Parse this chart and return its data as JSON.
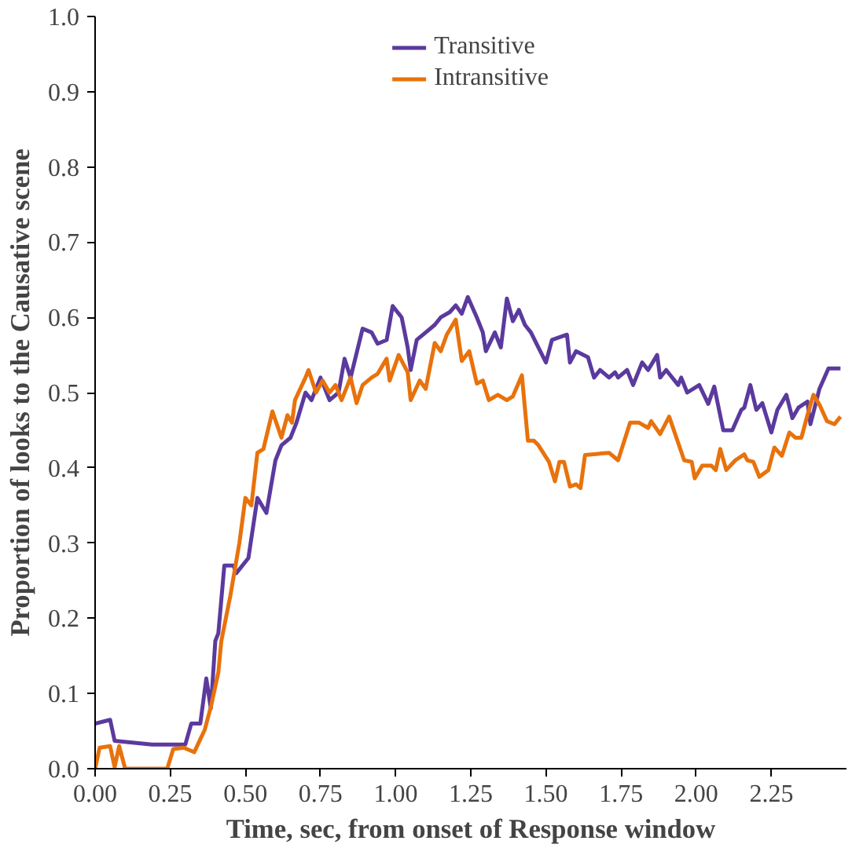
{
  "chart_data": {
    "type": "line",
    "xlabel": "Time, sec, from onset of Response window",
    "ylabel": "Proportion of looks to the Causative scene",
    "xlim": [
      0,
      2.5
    ],
    "ylim": [
      0,
      1
    ],
    "xticks": [
      {
        "value": 0,
        "label": "0.00"
      },
      {
        "value": 0.25,
        "label": "0.25"
      },
      {
        "value": 0.5,
        "label": "0.50"
      },
      {
        "value": 0.75,
        "label": "0.75"
      },
      {
        "value": 1,
        "label": "1.00"
      },
      {
        "value": 1.25,
        "label": "1.25"
      },
      {
        "value": 1.5,
        "label": "1.50"
      },
      {
        "value": 1.75,
        "label": "1.75"
      },
      {
        "value": 2,
        "label": "2.00"
      },
      {
        "value": 2.25,
        "label": "2.25"
      }
    ],
    "yticks": [
      {
        "value": 0,
        "label": "0.0"
      },
      {
        "value": 0.1,
        "label": "0.1"
      },
      {
        "value": 0.2,
        "label": "0.2"
      },
      {
        "value": 0.3,
        "label": "0.3"
      },
      {
        "value": 0.4,
        "label": "0.4"
      },
      {
        "value": 0.5,
        "label": "0.5"
      },
      {
        "value": 0.6,
        "label": "0.6"
      },
      {
        "value": 0.7,
        "label": "0.7"
      },
      {
        "value": 0.8,
        "label": "0.8"
      },
      {
        "value": 0.9,
        "label": "0.9"
      },
      {
        "value": 1,
        "label": "1.0"
      }
    ],
    "grid": false,
    "legend": "top",
    "marker": "none",
    "line_style": "solid",
    "series": [
      {
        "name": "Transitive",
        "color": "#5b3a9e",
        "x": [
          0,
          0.05,
          0.065,
          0.19,
          0.3,
          0.32,
          0.35,
          0.37,
          0.385,
          0.4,
          0.41,
          0.43,
          0.46,
          0.47,
          0.51,
          0.54,
          0.57,
          0.6,
          0.62,
          0.65,
          0.67,
          0.7,
          0.72,
          0.75,
          0.78,
          0.81,
          0.83,
          0.85,
          0.89,
          0.92,
          0.94,
          0.97,
          0.99,
          1.02,
          1.04,
          1.05,
          1.07,
          1.1,
          1.13,
          1.15,
          1.18,
          1.2,
          1.22,
          1.24,
          1.27,
          1.29,
          1.3,
          1.33,
          1.35,
          1.37,
          1.39,
          1.41,
          1.43,
          1.45,
          1.475,
          1.5,
          1.52,
          1.57,
          1.58,
          1.6,
          1.64,
          1.66,
          1.68,
          1.71,
          1.73,
          1.74,
          1.77,
          1.79,
          1.82,
          1.84,
          1.87,
          1.88,
          1.9,
          1.94,
          1.95,
          1.97,
          2.01,
          2.04,
          2.06,
          2.09,
          2.12,
          2.15,
          2.16,
          2.18,
          2.2,
          2.22,
          2.25,
          2.27,
          2.3,
          2.32,
          2.34,
          2.37,
          2.38,
          2.41,
          2.44,
          2.48
        ],
        "values": [
          0.06,
          0.065,
          0.037,
          0.032,
          0.032,
          0.06,
          0.06,
          0.12,
          0.08,
          0.17,
          0.18,
          0.27,
          0.27,
          0.26,
          0.28,
          0.36,
          0.34,
          0.41,
          0.43,
          0.44,
          0.46,
          0.5,
          0.49,
          0.52,
          0.49,
          0.5,
          0.545,
          0.52,
          0.585,
          0.58,
          0.565,
          0.57,
          0.615,
          0.6,
          0.56,
          0.53,
          0.57,
          0.58,
          0.59,
          0.6,
          0.607,
          0.616,
          0.605,
          0.627,
          0.6,
          0.58,
          0.555,
          0.58,
          0.56,
          0.625,
          0.595,
          0.61,
          0.59,
          0.58,
          0.56,
          0.54,
          0.57,
          0.577,
          0.54,
          0.555,
          0.547,
          0.52,
          0.53,
          0.52,
          0.527,
          0.52,
          0.53,
          0.51,
          0.54,
          0.53,
          0.55,
          0.52,
          0.53,
          0.51,
          0.52,
          0.5,
          0.51,
          0.485,
          0.508,
          0.45,
          0.45,
          0.477,
          0.48,
          0.51,
          0.477,
          0.486,
          0.447,
          0.477,
          0.497,
          0.466,
          0.48,
          0.488,
          0.458,
          0.505,
          0.532,
          0.532
        ]
      },
      {
        "name": "Intransitive",
        "color": "#e8720c",
        "x": [
          0,
          0.015,
          0.05,
          0.065,
          0.08,
          0.1,
          0.24,
          0.26,
          0.295,
          0.33,
          0.365,
          0.385,
          0.41,
          0.42,
          0.45,
          0.48,
          0.5,
          0.52,
          0.54,
          0.56,
          0.59,
          0.62,
          0.64,
          0.655,
          0.665,
          0.7,
          0.71,
          0.735,
          0.757,
          0.78,
          0.8,
          0.82,
          0.85,
          0.87,
          0.89,
          0.92,
          0.94,
          0.97,
          0.98,
          1.01,
          1.04,
          1.05,
          1.08,
          1.1,
          1.13,
          1.15,
          1.17,
          1.2,
          1.22,
          1.245,
          1.27,
          1.29,
          1.31,
          1.34,
          1.37,
          1.39,
          1.42,
          1.44,
          1.46,
          1.475,
          1.51,
          1.53,
          1.545,
          1.56,
          1.58,
          1.6,
          1.615,
          1.63,
          1.71,
          1.74,
          1.78,
          1.81,
          1.84,
          1.85,
          1.88,
          1.91,
          1.96,
          1.985,
          1.995,
          2.02,
          2.05,
          2.065,
          2.08,
          2.1,
          2.13,
          2.16,
          2.17,
          2.19,
          2.21,
          2.24,
          2.26,
          2.285,
          2.31,
          2.33,
          2.35,
          2.37,
          2.39,
          2.41,
          2.435,
          2.46,
          2.48
        ],
        "values": [
          0,
          0.028,
          0.03,
          0.002,
          0.03,
          0,
          0,
          0.026,
          0.028,
          0.022,
          0.052,
          0.082,
          0.128,
          0.17,
          0.23,
          0.3,
          0.36,
          0.35,
          0.42,
          0.425,
          0.475,
          0.44,
          0.47,
          0.46,
          0.49,
          0.52,
          0.53,
          0.5,
          0.516,
          0.5,
          0.51,
          0.49,
          0.52,
          0.486,
          0.51,
          0.52,
          0.525,
          0.545,
          0.516,
          0.55,
          0.527,
          0.49,
          0.516,
          0.505,
          0.566,
          0.555,
          0.577,
          0.597,
          0.542,
          0.555,
          0.512,
          0.516,
          0.49,
          0.497,
          0.49,
          0.495,
          0.523,
          0.436,
          0.436,
          0.43,
          0.408,
          0.382,
          0.408,
          0.408,
          0.375,
          0.378,
          0.373,
          0.417,
          0.42,
          0.41,
          0.46,
          0.46,
          0.453,
          0.462,
          0.445,
          0.468,
          0.41,
          0.408,
          0.386,
          0.403,
          0.403,
          0.397,
          0.425,
          0.397,
          0.41,
          0.418,
          0.41,
          0.408,
          0.388,
          0.397,
          0.427,
          0.416,
          0.447,
          0.44,
          0.44,
          0.47,
          0.497,
          0.484,
          0.462,
          0.458,
          0.468
        ]
      }
    ]
  }
}
